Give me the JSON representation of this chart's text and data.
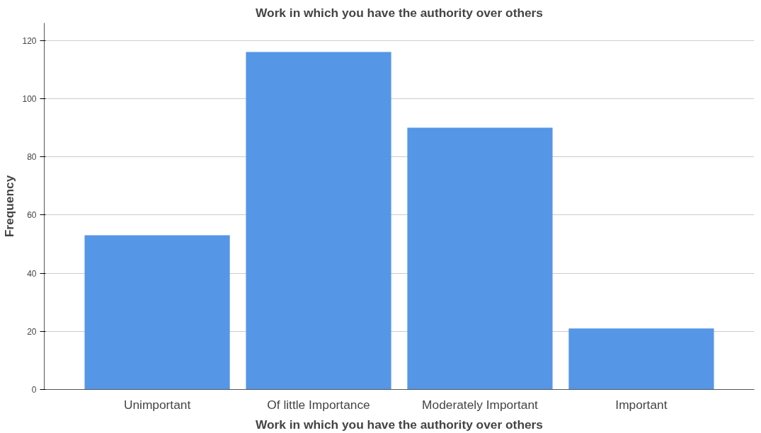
{
  "chart_data": {
    "type": "bar",
    "title": "Work in which you have the authority over others",
    "xlabel": "Work in which you have the authority over others",
    "ylabel": "Frequency",
    "categories": [
      "Unimportant",
      "Of little Importance",
      "Moderately Important",
      "Important"
    ],
    "values": [
      53,
      116,
      90,
      21
    ],
    "color": "#5596e6",
    "ylim": [
      0,
      126
    ],
    "yticks": [
      0,
      20,
      40,
      60,
      80,
      100,
      120
    ],
    "grid": "y"
  }
}
